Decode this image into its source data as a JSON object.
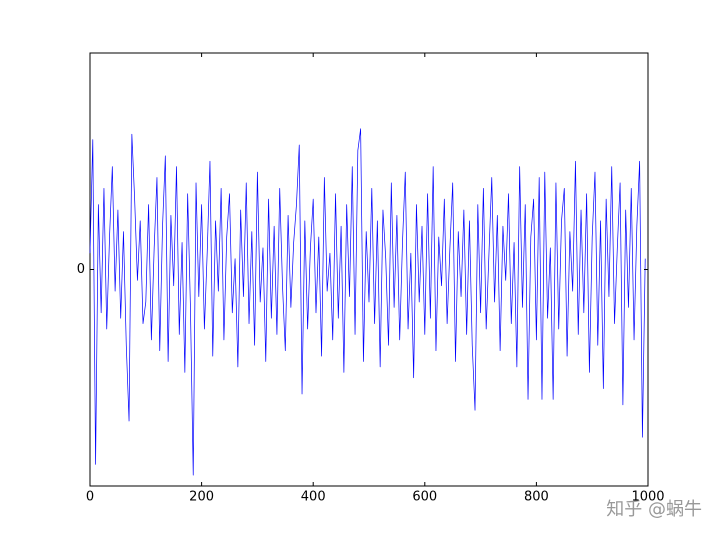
{
  "chart_data": {
    "type": "line",
    "color": "#0000ff",
    "x": [
      0,
      5,
      10,
      15,
      20,
      25,
      30,
      35,
      40,
      45,
      50,
      55,
      60,
      65,
      70,
      75,
      80,
      85,
      90,
      95,
      100,
      105,
      110,
      115,
      120,
      125,
      130,
      135,
      140,
      145,
      150,
      155,
      160,
      165,
      170,
      175,
      180,
      185,
      190,
      195,
      200,
      205,
      210,
      215,
      220,
      225,
      230,
      235,
      240,
      245,
      250,
      255,
      260,
      265,
      270,
      275,
      280,
      285,
      290,
      295,
      300,
      305,
      310,
      315,
      320,
      325,
      330,
      335,
      340,
      345,
      350,
      355,
      360,
      365,
      370,
      375,
      380,
      385,
      390,
      395,
      400,
      405,
      410,
      415,
      420,
      425,
      430,
      435,
      440,
      445,
      450,
      455,
      460,
      465,
      470,
      475,
      480,
      485,
      490,
      495,
      500,
      505,
      510,
      515,
      520,
      525,
      530,
      535,
      540,
      545,
      550,
      555,
      560,
      565,
      570,
      575,
      580,
      585,
      590,
      595,
      600,
      605,
      610,
      615,
      620,
      625,
      630,
      635,
      640,
      645,
      650,
      655,
      660,
      665,
      670,
      675,
      680,
      685,
      690,
      695,
      700,
      705,
      710,
      715,
      720,
      725,
      730,
      735,
      740,
      745,
      750,
      755,
      760,
      765,
      770,
      775,
      780,
      785,
      790,
      795,
      800,
      805,
      810,
      815,
      820,
      825,
      830,
      835,
      840,
      845,
      850,
      855,
      860,
      865,
      870,
      875,
      880,
      885,
      890,
      895,
      900,
      905,
      910,
      915,
      920,
      925,
      930,
      935,
      940,
      945,
      950,
      955,
      960,
      965,
      970,
      975,
      980,
      985,
      990,
      995
    ],
    "values": [
      0.3,
      2.4,
      -3.6,
      1.2,
      -0.8,
      1.5,
      -1.1,
      0.6,
      1.9,
      -0.4,
      1.1,
      -0.9,
      0.7,
      -1.4,
      -2.8,
      2.5,
      1.3,
      -0.2,
      0.9,
      -1.0,
      -0.6,
      1.2,
      -1.3,
      0.4,
      1.7,
      -1.5,
      0.8,
      2.1,
      -1.7,
      1.0,
      -0.3,
      1.9,
      -1.2,
      0.5,
      -1.9,
      1.4,
      -0.7,
      -3.8,
      1.6,
      -0.5,
      1.2,
      -1.1,
      0.3,
      2.0,
      -1.6,
      0.9,
      -0.4,
      1.5,
      -1.3,
      0.6,
      1.4,
      -0.8,
      0.2,
      -1.8,
      1.1,
      -0.5,
      1.6,
      -1.0,
      0.7,
      -1.4,
      1.8,
      -0.6,
      0.4,
      -1.7,
      1.3,
      -0.9,
      0.8,
      -1.2,
      1.5,
      -0.3,
      -1.5,
      1.0,
      -0.7,
      0.5,
      1.2,
      2.3,
      -2.3,
      0.9,
      -1.1,
      0.4,
      1.3,
      -0.8,
      0.6,
      -1.6,
      1.7,
      -0.4,
      0.3,
      -1.3,
      1.4,
      -0.9,
      0.8,
      -1.9,
      1.2,
      -0.5,
      1.9,
      -1.2,
      2.2,
      2.6,
      -1.7,
      0.7,
      -0.6,
      1.5,
      -1.0,
      0.9,
      -1.8,
      1.1,
      0.2,
      -1.4,
      1.6,
      -0.7,
      1.0,
      -1.3,
      0.5,
      1.8,
      -1.1,
      0.3,
      -2.0,
      1.2,
      -0.6,
      0.8,
      -1.2,
      1.4,
      -0.9,
      1.9,
      -1.5,
      0.6,
      -0.3,
      1.3,
      -1.0,
      0.4,
      1.6,
      -1.7,
      0.7,
      -0.5,
      1.1,
      -1.2,
      0.9,
      -1.4,
      -2.6,
      1.2,
      -0.8,
      1.5,
      -1.1,
      0.3,
      1.7,
      -0.6,
      1.0,
      -1.5,
      0.8,
      -0.2,
      1.4,
      -1.0,
      0.5,
      -1.8,
      1.9,
      -0.7,
      1.2,
      -2.4,
      0.6,
      1.3,
      -1.3,
      1.7,
      -2.4,
      1.8,
      -0.9,
      0.4,
      -2.4,
      1.6,
      -1.1,
      0.9,
      1.5,
      -1.6,
      0.7,
      -0.4,
      2.0,
      -1.2,
      1.1,
      -0.8,
      1.4,
      -1.9,
      0.6,
      1.8,
      -1.4,
      0.9,
      -2.2,
      1.3,
      -0.5,
      1.9,
      -1.0,
      0.4,
      1.6,
      -2.5,
      1.1,
      -0.7,
      1.5,
      -1.3,
      0.8,
      2.0,
      -3.1,
      0.2
    ],
    "xlim": [
      0,
      1000
    ],
    "xticks": [
      0,
      200,
      400,
      600,
      800,
      1000
    ],
    "ylim": [
      -4,
      4
    ],
    "yticks": [
      0
    ]
  },
  "watermark": "知乎 @蜗牛"
}
